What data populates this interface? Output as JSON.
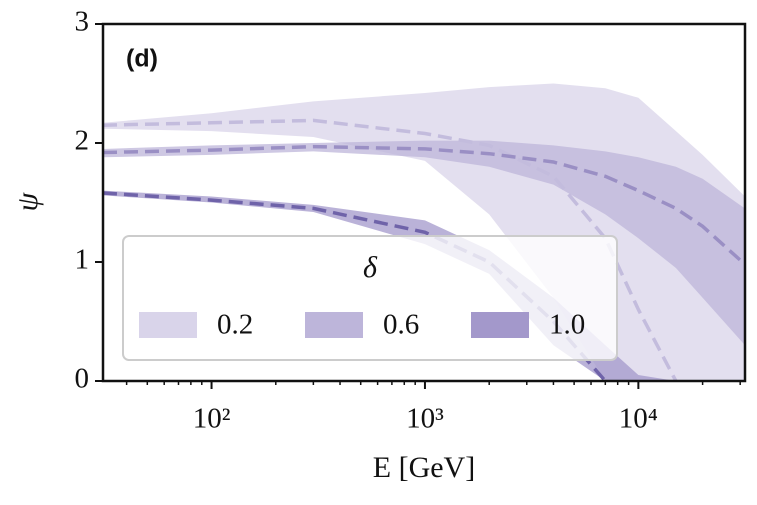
{
  "chart_data": {
    "type": "band-line",
    "panel_label": "(d)",
    "x_label": "E [GeV]",
    "y_label": "ψ",
    "x_scale": "log",
    "xlim": [
      31,
      31600
    ],
    "ylim": [
      0,
      3
    ],
    "xticks": [
      {
        "value": 100,
        "label": "10²"
      },
      {
        "value": 1000,
        "label": "10³"
      },
      {
        "value": 10000,
        "label": "10⁴"
      }
    ],
    "xminorticks": [
      40,
      50,
      60,
      70,
      80,
      90,
      200,
      300,
      400,
      500,
      600,
      700,
      800,
      900,
      2000,
      3000,
      4000,
      5000,
      6000,
      7000,
      8000,
      9000,
      20000,
      30000
    ],
    "yticks": [
      0,
      1,
      2,
      3
    ],
    "legend_title": "δ",
    "legend_position": "lower left",
    "x": [
      31,
      100,
      300,
      1000,
      2000,
      4000,
      7000,
      10000,
      15000,
      20000,
      31600
    ],
    "series": [
      {
        "name": "0.2",
        "color": "#d9d4ea",
        "line_color": "#c3bcdd",
        "upper": [
          2.17,
          2.25,
          2.35,
          2.42,
          2.47,
          2.5,
          2.46,
          2.38,
          2.1,
          1.9,
          1.55
        ],
        "lower": [
          2.12,
          2.1,
          2.05,
          1.85,
          1.4,
          0.7,
          0,
          0,
          0,
          0,
          0
        ],
        "values": [
          2.15,
          2.17,
          2.19,
          2.08,
          1.98,
          1.72,
          1.2,
          0.6,
          0,
          null,
          null
        ]
      },
      {
        "name": "0.6",
        "color": "#bdb5da",
        "line_color": "#9a8fc4",
        "upper": [
          1.95,
          1.98,
          2.0,
          2.02,
          2.02,
          1.98,
          1.93,
          1.88,
          1.8,
          1.7,
          1.45
        ],
        "lower": [
          1.88,
          1.9,
          1.93,
          1.88,
          1.8,
          1.65,
          1.4,
          1.2,
          0.95,
          0.7,
          0.3
        ],
        "values": [
          1.92,
          1.94,
          1.97,
          1.95,
          1.91,
          1.84,
          1.72,
          1.6,
          1.45,
          1.3,
          0.98
        ]
      },
      {
        "name": "1.0",
        "color": "#a398cb",
        "line_color": "#6f63a9",
        "upper": [
          1.6,
          1.55,
          1.48,
          1.35,
          1.1,
          0.7,
          0.3,
          0.05,
          0,
          0,
          0
        ],
        "lower": [
          1.56,
          1.5,
          1.42,
          1.15,
          0.9,
          0.3,
          0,
          0,
          0,
          0,
          0
        ],
        "values": [
          1.58,
          1.52,
          1.45,
          1.25,
          1.0,
          0.5,
          0,
          null,
          null,
          null,
          null
        ]
      }
    ]
  }
}
